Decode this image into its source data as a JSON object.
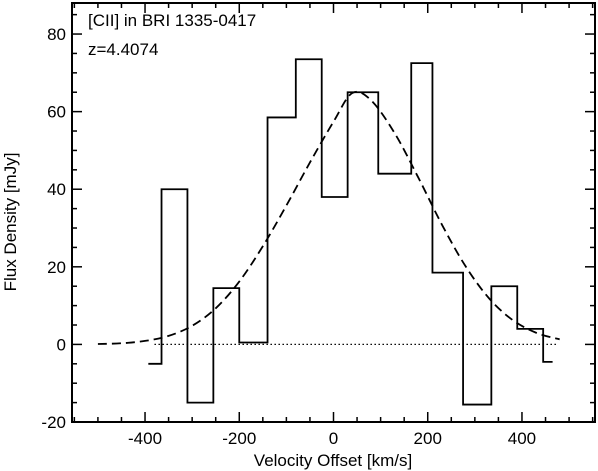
{
  "chart_data": {
    "type": "line",
    "title": "",
    "annotations": [
      "[CII] in BRI 1335-0417",
      "z=4.4074"
    ],
    "xlabel": "Velocity Offset [km/s]",
    "ylabel": "Flux Density [mJy]",
    "xlim": [
      -555,
      555
    ],
    "ylim": [
      -20,
      88
    ],
    "xticks": [
      -400,
      -200,
      0,
      200,
      400
    ],
    "xtick_labels": [
      "-400",
      "-200",
      "0",
      "200",
      "400"
    ],
    "yticks": [
      -20,
      0,
      20,
      40,
      60,
      80
    ],
    "ytick_labels": [
      "-20",
      "0",
      "20",
      "40",
      "60",
      "80"
    ],
    "grid": false,
    "series": [
      {
        "style": "histogram-steps",
        "x": [
          -393,
          -365,
          -365,
          -310,
          -310,
          -255,
          -255,
          -200,
          -200,
          -140,
          -140,
          -80,
          -80,
          -25,
          -25,
          30,
          30,
          95,
          95,
          165,
          165,
          210,
          210,
          275,
          275,
          335,
          335,
          390,
          390,
          445,
          445,
          465,
          465
        ],
        "y": [
          -5,
          -5,
          40,
          40,
          -15,
          -15,
          14.5,
          14.5,
          0.5,
          0.5,
          58.5,
          58.5,
          73.5,
          73.5,
          38,
          38,
          65,
          65,
          44,
          44,
          72.5,
          72.5,
          18.5,
          18.5,
          -15.5,
          -15.5,
          15,
          15,
          4,
          4,
          -4.5,
          -4.5,
          -4.5
        ]
      },
      {
        "style": "dashed",
        "x": [
          -500,
          -450,
          -400,
          -350,
          -300,
          -250,
          -200,
          -150,
          -100,
          -50,
          0,
          40,
          80,
          130,
          180,
          230,
          280,
          330,
          380,
          430,
          480
        ],
        "y": [
          0.1,
          0.3,
          0.9,
          2.2,
          4.8,
          9.3,
          16.2,
          25.3,
          35.8,
          46.9,
          57.4,
          64.8,
          62.9,
          54.4,
          43.0,
          30.9,
          20.2,
          11.9,
          6.3,
          3.0,
          1.3
        ]
      },
      {
        "style": "dotted",
        "x": [
          -380,
          475
        ],
        "y": [
          0,
          0
        ]
      }
    ]
  }
}
